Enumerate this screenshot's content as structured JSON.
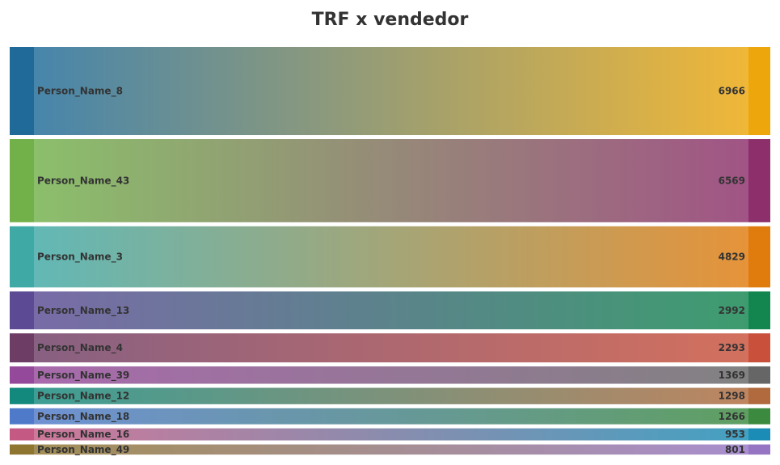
{
  "chart_data": {
    "type": "bar",
    "title": "TRF x vendedor",
    "categories": [
      "Person_Name_8",
      "Person_Name_43",
      "Person_Name_3",
      "Person_Name_13",
      "Person_Name_4",
      "Person_Name_39",
      "Person_Name_12",
      "Person_Name_18",
      "Person_Name_16",
      "Person_Name_49"
    ],
    "values": [
      6966,
      6569,
      4829,
      2992,
      2293,
      1369,
      1298,
      1266,
      953,
      801
    ],
    "value_labels": [
      "6966",
      "6569",
      "4829",
      "2992",
      "2293",
      "1369",
      "1298",
      "1266",
      "953",
      "801"
    ],
    "encoding": "bar thickness proportional to value; colors flow left to right",
    "colors": {
      "left": [
        "#1f6a99",
        "#72b14a",
        "#3fa9a6",
        "#5c4a94",
        "#6e3d66",
        "#95499a",
        "#13897d",
        "#4f79c9",
        "#c45a84",
        "#8e7530"
      ],
      "right": [
        "#eda70c",
        "#8c2f6a",
        "#e07b0d",
        "#13864f",
        "#c9513b",
        "#666666",
        "#b06a3d",
        "#3c8a3f",
        "#1a8cb5",
        "#9575c3"
      ]
    }
  }
}
